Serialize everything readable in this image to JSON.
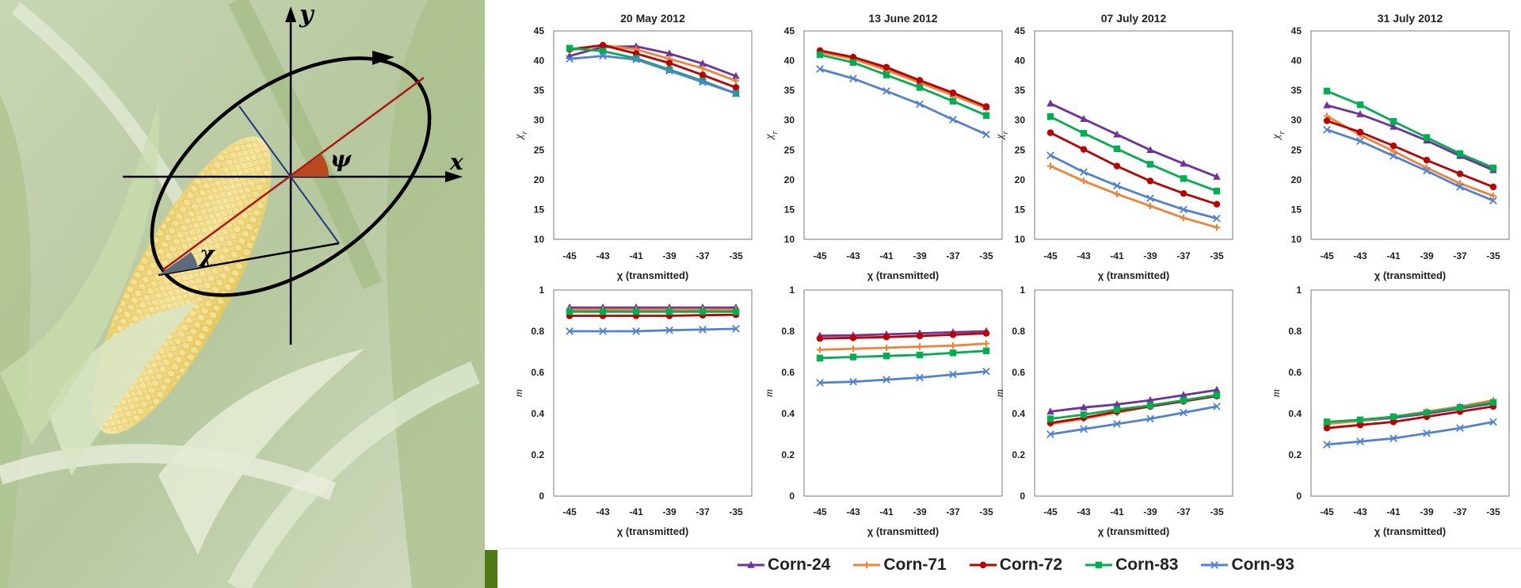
{
  "diagram": {
    "axis_y_label": "y",
    "axis_x_label": "x",
    "angle_psi_label": "ψ",
    "angle_chi_label": "χ",
    "background": "corn-plant-photo"
  },
  "legend": [
    {
      "name": "Corn-24",
      "color": "#7030a0",
      "marker": "triangle"
    },
    {
      "name": "Corn-71",
      "color": "#f58232",
      "marker": "cross"
    },
    {
      "name": "Corn-72",
      "color": "#c00000",
      "marker": "circle"
    },
    {
      "name": "Corn-83",
      "color": "#00b050",
      "marker": "square"
    },
    {
      "name": "Corn-93",
      "color": "#4f81d9",
      "marker": "x"
    }
  ],
  "chart_data": [
    {
      "type": "line",
      "title": "20 May 2012",
      "xlabel": "χ (transmitted)",
      "ylabel": "χr",
      "x": [
        -45,
        -43,
        -41,
        -39,
        -37,
        -35
      ],
      "ylim": [
        10,
        45
      ],
      "yticks": [
        10,
        15,
        20,
        25,
        30,
        35,
        40,
        45
      ],
      "series": [
        {
          "name": "Corn-24",
          "values": [
            40.8,
            42.3,
            42.4,
            41.2,
            39.5,
            37.4
          ]
        },
        {
          "name": "Corn-71",
          "values": [
            41.7,
            42.6,
            41.9,
            40.3,
            38.7,
            36.6
          ]
        },
        {
          "name": "Corn-72",
          "values": [
            41.9,
            42.6,
            41.2,
            39.6,
            37.6,
            35.5
          ]
        },
        {
          "name": "Corn-83",
          "values": [
            42.1,
            41.6,
            40.4,
            38.5,
            36.6,
            34.5
          ]
        },
        {
          "name": "Corn-93",
          "values": [
            40.3,
            40.8,
            40.2,
            38.3,
            36.4,
            34.5
          ]
        }
      ]
    },
    {
      "type": "line",
      "title": "13 June 2012",
      "xlabel": "χ (transmitted)",
      "ylabel": "χr",
      "x": [
        -45,
        -43,
        -41,
        -39,
        -37,
        -35
      ],
      "ylim": [
        10,
        45
      ],
      "yticks": [
        10,
        15,
        20,
        25,
        30,
        35,
        40,
        45
      ],
      "series": [
        {
          "name": "Corn-24",
          "values": [
            41.6,
            40.5,
            38.6,
            36.5,
            34.4,
            32.2
          ]
        },
        {
          "name": "Corn-71",
          "values": [
            41.4,
            40.3,
            38.4,
            36.3,
            34.2,
            32.0
          ]
        },
        {
          "name": "Corn-72",
          "values": [
            41.7,
            40.6,
            38.9,
            36.7,
            34.6,
            32.3
          ]
        },
        {
          "name": "Corn-83",
          "values": [
            41.0,
            39.7,
            37.6,
            35.5,
            33.2,
            30.8
          ]
        },
        {
          "name": "Corn-93",
          "values": [
            38.6,
            37.0,
            34.9,
            32.7,
            30.1,
            27.6
          ]
        }
      ]
    },
    {
      "type": "line",
      "title": "07 July 2012",
      "xlabel": "χ (transmitted)",
      "ylabel": "χr",
      "x": [
        -45,
        -43,
        -41,
        -39,
        -37,
        -35
      ],
      "ylim": [
        10,
        45
      ],
      "yticks": [
        10,
        15,
        20,
        25,
        30,
        35,
        40,
        45
      ],
      "series": [
        {
          "name": "Corn-24",
          "values": [
            32.8,
            30.2,
            27.6,
            25.0,
            22.7,
            20.5
          ]
        },
        {
          "name": "Corn-71",
          "values": [
            22.3,
            19.8,
            17.6,
            15.6,
            13.6,
            12.0
          ]
        },
        {
          "name": "Corn-72",
          "values": [
            27.9,
            25.1,
            22.3,
            19.8,
            17.7,
            15.9
          ]
        },
        {
          "name": "Corn-83",
          "values": [
            30.6,
            27.8,
            25.2,
            22.6,
            20.2,
            18.1
          ]
        },
        {
          "name": "Corn-93",
          "values": [
            24.1,
            21.3,
            19.0,
            16.9,
            15.0,
            13.5
          ]
        }
      ]
    },
    {
      "type": "line",
      "title": "31 July 2012",
      "xlabel": "χ (transmitted)",
      "ylabel": "χr",
      "x": [
        -45,
        -43,
        -41,
        -39,
        -37,
        -35
      ],
      "ylim": [
        10,
        45
      ],
      "yticks": [
        10,
        15,
        20,
        25,
        30,
        35,
        40,
        45
      ],
      "series": [
        {
          "name": "Corn-24",
          "values": [
            32.5,
            31.0,
            28.9,
            26.6,
            24.0,
            21.6
          ]
        },
        {
          "name": "Corn-71",
          "values": [
            30.7,
            27.5,
            24.8,
            22.0,
            19.4,
            17.3
          ]
        },
        {
          "name": "Corn-72",
          "values": [
            29.9,
            28.0,
            25.7,
            23.3,
            21.0,
            18.8
          ]
        },
        {
          "name": "Corn-83",
          "values": [
            34.9,
            32.6,
            29.8,
            27.1,
            24.4,
            22.0
          ]
        },
        {
          "name": "Corn-93",
          "values": [
            28.4,
            26.5,
            24.0,
            21.5,
            18.8,
            16.5
          ]
        }
      ]
    },
    {
      "type": "line",
      "xlabel": "χ (transmitted)",
      "ylabel": "m",
      "x": [
        -45,
        -43,
        -41,
        -39,
        -37,
        -35
      ],
      "ylim": [
        0,
        1
      ],
      "yticks": [
        0,
        0.2,
        0.4,
        0.6,
        0.8,
        1
      ],
      "series": [
        {
          "name": "Corn-24",
          "values": [
            0.915,
            0.915,
            0.915,
            0.915,
            0.915,
            0.915
          ]
        },
        {
          "name": "Corn-71",
          "values": [
            0.905,
            0.905,
            0.905,
            0.905,
            0.905,
            0.905
          ]
        },
        {
          "name": "Corn-72",
          "values": [
            0.875,
            0.875,
            0.875,
            0.875,
            0.878,
            0.88
          ]
        },
        {
          "name": "Corn-83",
          "values": [
            0.895,
            0.895,
            0.895,
            0.895,
            0.895,
            0.895
          ]
        },
        {
          "name": "Corn-93",
          "values": [
            0.8,
            0.8,
            0.8,
            0.805,
            0.808,
            0.812
          ]
        }
      ]
    },
    {
      "type": "line",
      "xlabel": "χ (transmitted)",
      "ylabel": "m",
      "x": [
        -45,
        -43,
        -41,
        -39,
        -37,
        -35
      ],
      "ylim": [
        0,
        1
      ],
      "yticks": [
        0,
        0.2,
        0.4,
        0.6,
        0.8,
        1
      ],
      "series": [
        {
          "name": "Corn-24",
          "values": [
            0.778,
            0.78,
            0.785,
            0.79,
            0.795,
            0.8
          ]
        },
        {
          "name": "Corn-71",
          "values": [
            0.71,
            0.715,
            0.72,
            0.725,
            0.73,
            0.74
          ]
        },
        {
          "name": "Corn-72",
          "values": [
            0.765,
            0.768,
            0.772,
            0.777,
            0.783,
            0.79
          ]
        },
        {
          "name": "Corn-83",
          "values": [
            0.67,
            0.675,
            0.68,
            0.685,
            0.695,
            0.705
          ]
        },
        {
          "name": "Corn-93",
          "values": [
            0.55,
            0.555,
            0.565,
            0.575,
            0.59,
            0.605
          ]
        }
      ]
    },
    {
      "type": "line",
      "xlabel": "χ (transmitted)",
      "ylabel": "m",
      "x": [
        -45,
        -43,
        -41,
        -39,
        -37,
        -35
      ],
      "ylim": [
        0,
        1
      ],
      "yticks": [
        0,
        0.2,
        0.4,
        0.6,
        0.8,
        1
      ],
      "series": [
        {
          "name": "Corn-24",
          "values": [
            0.41,
            0.43,
            0.445,
            0.465,
            0.49,
            0.515
          ]
        },
        {
          "name": "Corn-71",
          "values": [
            0.35,
            0.375,
            0.405,
            0.435,
            0.46,
            0.49
          ]
        },
        {
          "name": "Corn-72",
          "values": [
            0.355,
            0.38,
            0.41,
            0.435,
            0.46,
            0.485
          ]
        },
        {
          "name": "Corn-83",
          "values": [
            0.375,
            0.395,
            0.42,
            0.44,
            0.465,
            0.49
          ]
        },
        {
          "name": "Corn-93",
          "values": [
            0.3,
            0.325,
            0.35,
            0.375,
            0.405,
            0.435
          ]
        }
      ]
    },
    {
      "type": "line",
      "xlabel": "χ (transmitted)",
      "ylabel": "m",
      "x": [
        -45,
        -43,
        -41,
        -39,
        -37,
        -35
      ],
      "ylim": [
        0,
        1
      ],
      "yticks": [
        0,
        0.2,
        0.4,
        0.6,
        0.8,
        1
      ],
      "series": [
        {
          "name": "Corn-24",
          "values": [
            0.355,
            0.365,
            0.38,
            0.4,
            0.425,
            0.45
          ]
        },
        {
          "name": "Corn-71",
          "values": [
            0.35,
            0.365,
            0.385,
            0.41,
            0.435,
            0.465
          ]
        },
        {
          "name": "Corn-72",
          "values": [
            0.33,
            0.345,
            0.36,
            0.385,
            0.41,
            0.435
          ]
        },
        {
          "name": "Corn-83",
          "values": [
            0.36,
            0.37,
            0.385,
            0.405,
            0.43,
            0.455
          ]
        },
        {
          "name": "Corn-93",
          "values": [
            0.25,
            0.265,
            0.28,
            0.305,
            0.33,
            0.36
          ]
        }
      ]
    }
  ]
}
